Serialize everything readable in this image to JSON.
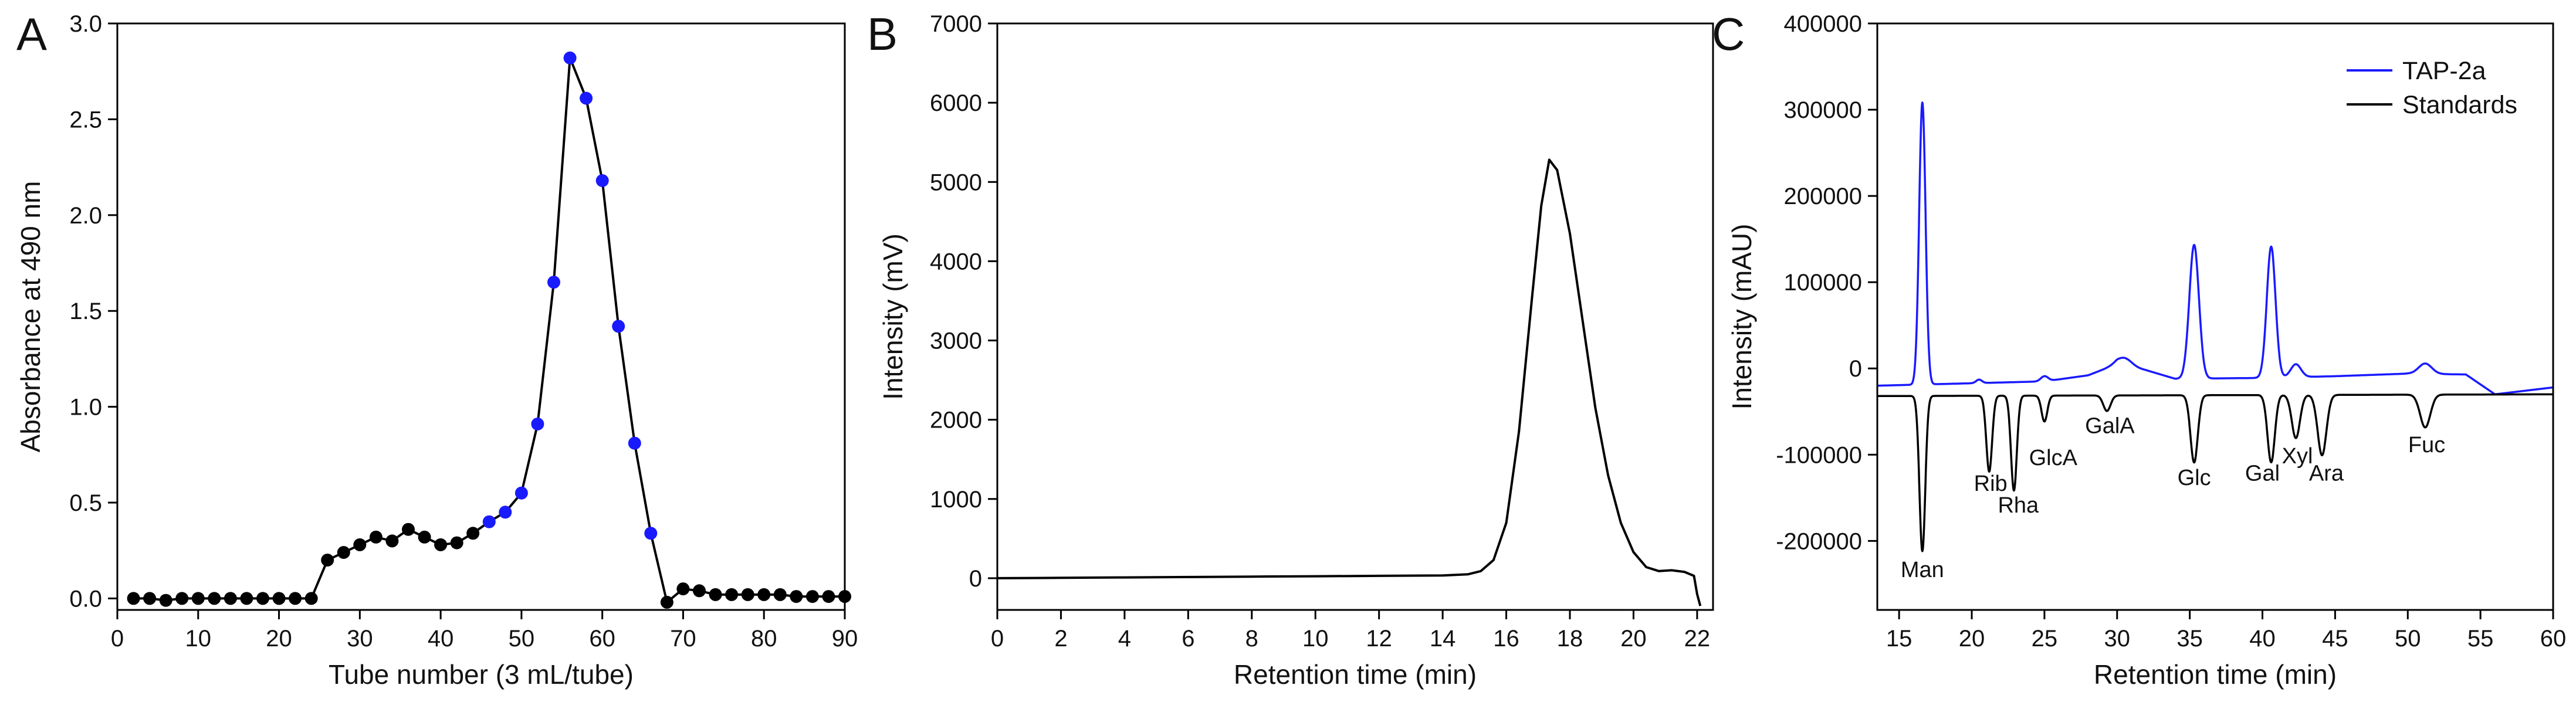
{
  "colors": {
    "black": "#000000",
    "blue": "#1a1aff"
  },
  "chart_data": [
    {
      "panel": "A",
      "type": "line",
      "xlabel": "Tube number (3 mL/tube)",
      "ylabel": "Absorbance at 490 nm",
      "xlim": [
        0,
        90
      ],
      "ylim": [
        -0.06,
        3.0
      ],
      "xticks": [
        0,
        10,
        20,
        30,
        40,
        50,
        60,
        70,
        80,
        90
      ],
      "yticks": [
        0.0,
        0.5,
        1.0,
        1.5,
        2.0,
        2.5,
        3.0
      ],
      "ytick_labels": [
        "0.0",
        "0.5",
        "1.0",
        "1.5",
        "2.0",
        "2.5",
        "3.0"
      ],
      "grid": false,
      "series": [
        {
          "marker": "circle",
          "line_color": "#000000",
          "points": [
            {
              "x": 2,
              "y": 0.0,
              "c": "black"
            },
            {
              "x": 4,
              "y": 0.0,
              "c": "black"
            },
            {
              "x": 6,
              "y": -0.01,
              "c": "black"
            },
            {
              "x": 8,
              "y": 0.0,
              "c": "black"
            },
            {
              "x": 10,
              "y": 0.0,
              "c": "black"
            },
            {
              "x": 12,
              "y": 0.0,
              "c": "black"
            },
            {
              "x": 14,
              "y": 0.0,
              "c": "black"
            },
            {
              "x": 16,
              "y": 0.0,
              "c": "black"
            },
            {
              "x": 18,
              "y": 0.0,
              "c": "black"
            },
            {
              "x": 20,
              "y": 0.0,
              "c": "black"
            },
            {
              "x": 22,
              "y": 0.0,
              "c": "black"
            },
            {
              "x": 24,
              "y": 0.0,
              "c": "black"
            },
            {
              "x": 26,
              "y": 0.2,
              "c": "black"
            },
            {
              "x": 28,
              "y": 0.24,
              "c": "black"
            },
            {
              "x": 30,
              "y": 0.28,
              "c": "black"
            },
            {
              "x": 32,
              "y": 0.32,
              "c": "black"
            },
            {
              "x": 34,
              "y": 0.3,
              "c": "black"
            },
            {
              "x": 36,
              "y": 0.36,
              "c": "black"
            },
            {
              "x": 38,
              "y": 0.32,
              "c": "black"
            },
            {
              "x": 40,
              "y": 0.28,
              "c": "black"
            },
            {
              "x": 42,
              "y": 0.29,
              "c": "black"
            },
            {
              "x": 44,
              "y": 0.34,
              "c": "black"
            },
            {
              "x": 46,
              "y": 0.4,
              "c": "blue"
            },
            {
              "x": 48,
              "y": 0.45,
              "c": "blue"
            },
            {
              "x": 50,
              "y": 0.55,
              "c": "blue"
            },
            {
              "x": 52,
              "y": 0.91,
              "c": "blue"
            },
            {
              "x": 54,
              "y": 1.65,
              "c": "blue"
            },
            {
              "x": 56,
              "y": 2.82,
              "c": "blue"
            },
            {
              "x": 58,
              "y": 2.61,
              "c": "blue"
            },
            {
              "x": 60,
              "y": 2.18,
              "c": "blue"
            },
            {
              "x": 62,
              "y": 1.42,
              "c": "blue"
            },
            {
              "x": 64,
              "y": 0.81,
              "c": "blue"
            },
            {
              "x": 66,
              "y": 0.34,
              "c": "blue"
            },
            {
              "x": 68,
              "y": -0.02,
              "c": "black"
            },
            {
              "x": 70,
              "y": 0.05,
              "c": "black"
            },
            {
              "x": 72,
              "y": 0.04,
              "c": "black"
            },
            {
              "x": 74,
              "y": 0.02,
              "c": "black"
            },
            {
              "x": 76,
              "y": 0.02,
              "c": "black"
            },
            {
              "x": 78,
              "y": 0.02,
              "c": "black"
            },
            {
              "x": 80,
              "y": 0.02,
              "c": "black"
            },
            {
              "x": 82,
              "y": 0.02,
              "c": "black"
            },
            {
              "x": 84,
              "y": 0.01,
              "c": "black"
            },
            {
              "x": 86,
              "y": 0.01,
              "c": "black"
            },
            {
              "x": 88,
              "y": 0.01,
              "c": "black"
            },
            {
              "x": 90,
              "y": 0.01,
              "c": "black"
            }
          ]
        }
      ]
    },
    {
      "panel": "B",
      "type": "line",
      "xlabel": "Retention time (min)",
      "ylabel": "Intensity (mV)",
      "xlim": [
        0,
        22.5
      ],
      "ylim": [
        -400,
        7000
      ],
      "xticks": [
        0,
        2,
        4,
        6,
        8,
        10,
        12,
        14,
        16,
        18,
        20,
        22
      ],
      "yticks": [
        0,
        1000,
        2000,
        3000,
        4000,
        5000,
        6000,
        7000
      ],
      "grid": false,
      "series": [
        {
          "line_color": "#000000",
          "points": [
            [
              0,
              0
            ],
            [
              2,
              5
            ],
            [
              4,
              10
            ],
            [
              6,
              15
            ],
            [
              8,
              20
            ],
            [
              10,
              25
            ],
            [
              12,
              30
            ],
            [
              14,
              35
            ],
            [
              14.8,
              50
            ],
            [
              15.2,
              90
            ],
            [
              15.6,
              230
            ],
            [
              16.0,
              700
            ],
            [
              16.4,
              1850
            ],
            [
              16.8,
              3500
            ],
            [
              17.1,
              4700
            ],
            [
              17.35,
              5280
            ],
            [
              17.6,
              5150
            ],
            [
              18.0,
              4350
            ],
            [
              18.4,
              3250
            ],
            [
              18.8,
              2150
            ],
            [
              19.2,
              1300
            ],
            [
              19.6,
              700
            ],
            [
              20.0,
              330
            ],
            [
              20.4,
              140
            ],
            [
              20.8,
              90
            ],
            [
              21.2,
              100
            ],
            [
              21.6,
              80
            ],
            [
              21.9,
              30
            ],
            [
              22.0,
              -200
            ],
            [
              22.1,
              -350
            ]
          ]
        }
      ]
    },
    {
      "panel": "C",
      "type": "line",
      "xlabel": "Retention time (min)",
      "ylabel": "Intensity (mAU)",
      "xlim": [
        13.5,
        60
      ],
      "ylim": [
        -280000,
        400000
      ],
      "xticks": [
        15,
        20,
        25,
        30,
        35,
        40,
        45,
        50,
        55,
        60
      ],
      "yticks": [
        -200000,
        -100000,
        0,
        100000,
        200000,
        300000,
        400000
      ],
      "legend": "top-right",
      "grid": false,
      "series": [
        {
          "name": "TAP-2a",
          "line_color": "#1a1aff",
          "baseline": [
            [
              13.5,
              -20000
            ],
            [
              25,
              -15000
            ],
            [
              28,
              -8000
            ],
            [
              30,
              5000
            ],
            [
              32,
              -2000
            ],
            [
              34,
              -12000
            ],
            [
              40,
              -11000
            ],
            [
              45,
              -9000
            ],
            [
              50,
              -6000
            ],
            [
              54,
              -7000
            ],
            [
              56,
              -30000
            ],
            [
              60,
              -22000
            ]
          ],
          "peaks": [
            [
              16.6,
              327000,
              0.22
            ],
            [
              20.5,
              4000,
              0.2
            ],
            [
              25.0,
              6000,
              0.25
            ],
            [
              30.5,
              9000,
              0.5
            ],
            [
              35.3,
              155000,
              0.33
            ],
            [
              40.6,
              152000,
              0.3
            ],
            [
              42.3,
              15000,
              0.35
            ],
            [
              51.2,
              12000,
              0.45
            ]
          ]
        },
        {
          "name": "Standards",
          "line_color": "#000000",
          "baseline": [
            [
              13.5,
              -32000
            ],
            [
              60,
              -30000
            ]
          ],
          "peaks": [
            [
              16.6,
              -180000,
              0.2
            ],
            [
              21.2,
              -88000,
              0.2
            ],
            [
              22.9,
              -110000,
              0.2
            ],
            [
              25.0,
              -30000,
              0.2
            ],
            [
              29.3,
              -18000,
              0.25
            ],
            [
              35.3,
              -78000,
              0.25
            ],
            [
              40.6,
              -78000,
              0.25
            ],
            [
              42.3,
              -50000,
              0.28
            ],
            [
              44.1,
              -70000,
              0.3
            ],
            [
              51.2,
              -38000,
              0.35
            ]
          ]
        }
      ],
      "annotations": [
        {
          "text": "Man",
          "x": 16.6,
          "y": -242000
        },
        {
          "text": "Rib",
          "x": 21.3,
          "y": -142000
        },
        {
          "text": "Rha",
          "x": 23.2,
          "y": -167000
        },
        {
          "text": "GlcA",
          "x": 25.6,
          "y": -112000
        },
        {
          "text": "GalA",
          "x": 29.5,
          "y": -75000
        },
        {
          "text": "Glc",
          "x": 35.3,
          "y": -135000
        },
        {
          "text": "Gal",
          "x": 40.0,
          "y": -130000
        },
        {
          "text": "Xyl",
          "x": 42.4,
          "y": -110000
        },
        {
          "text": "Ara",
          "x": 44.4,
          "y": -130000
        },
        {
          "text": "Fuc",
          "x": 51.3,
          "y": -97000
        }
      ]
    }
  ]
}
